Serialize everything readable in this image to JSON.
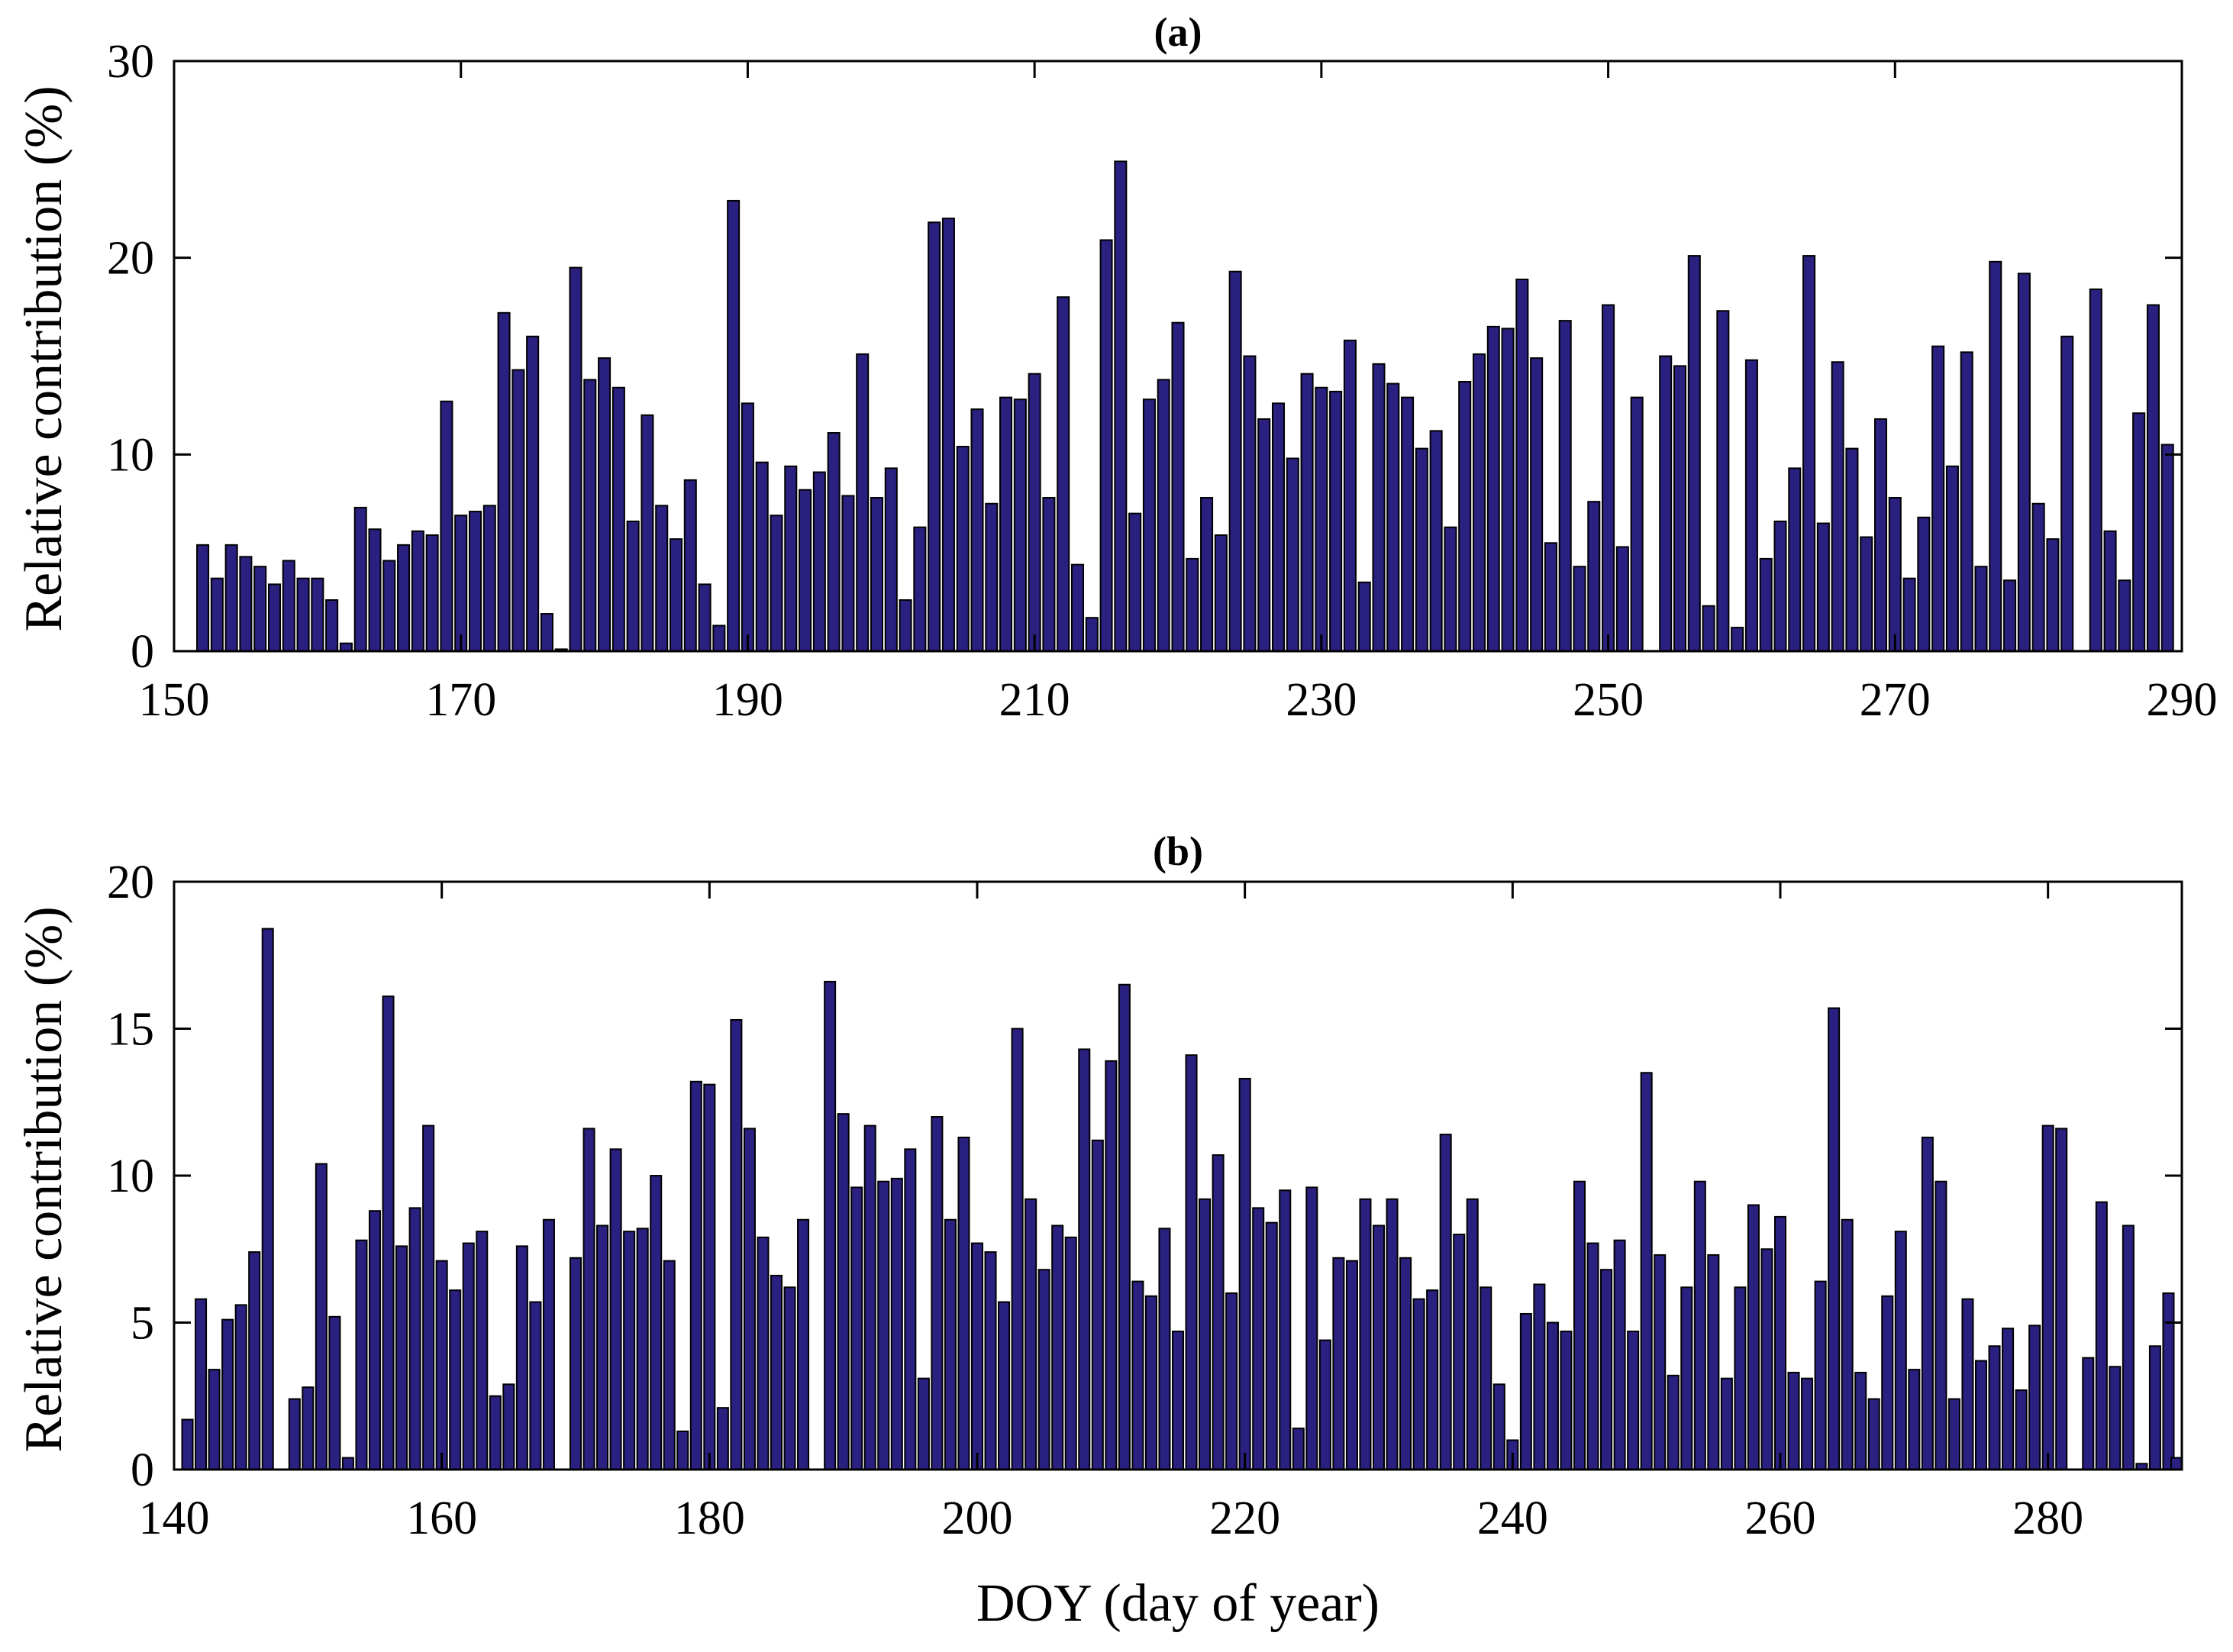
{
  "chart_data": [
    {
      "type": "bar",
      "panel": "a",
      "title": "(a)",
      "xlabel": "",
      "ylabel": "Relative contribution (%)",
      "xlim": [
        150,
        290
      ],
      "ylim": [
        0,
        30
      ],
      "xticks": [
        150,
        170,
        190,
        210,
        230,
        250,
        270,
        290
      ],
      "yticks": [
        0,
        10,
        20,
        30
      ],
      "bar_color": "#2a2080",
      "x_start": 152,
      "values": [
        5.4,
        3.7,
        5.4,
        4.8,
        4.3,
        3.4,
        4.6,
        3.7,
        3.7,
        2.6,
        0.4,
        7.3,
        6.2,
        4.6,
        5.4,
        6.1,
        5.9,
        12.7,
        6.9,
        7.1,
        7.4,
        17.2,
        14.3,
        16.0,
        1.9,
        0.1,
        19.5,
        13.8,
        14.9,
        13.4,
        6.6,
        12.0,
        7.4,
        5.7,
        8.7,
        3.4,
        1.3,
        22.9,
        12.6,
        9.6,
        6.9,
        9.4,
        8.2,
        9.1,
        11.1,
        7.9,
        15.1,
        7.8,
        9.3,
        2.6,
        6.3,
        21.8,
        22.0,
        10.4,
        12.3,
        7.5,
        12.9,
        12.8,
        14.1,
        7.8,
        18.0,
        4.4,
        1.7,
        20.9,
        24.9,
        7.0,
        12.8,
        13.8,
        16.7,
        4.7,
        7.8,
        5.9,
        19.3,
        15.0,
        11.8,
        12.6,
        9.8,
        14.1,
        13.4,
        13.2,
        15.8,
        3.5,
        14.6,
        13.6,
        12.9,
        10.3,
        11.2,
        6.3,
        13.7,
        15.1,
        16.5,
        16.4,
        18.9,
        14.9,
        5.5,
        16.8,
        4.3,
        7.6,
        17.6,
        5.3,
        12.9,
        0.0,
        15.0,
        14.5,
        20.1,
        2.3,
        17.3,
        1.2,
        14.8,
        4.7,
        6.6,
        9.3,
        20.1,
        6.5,
        14.7,
        10.3,
        5.8,
        11.8,
        7.8,
        3.7,
        6.8,
        15.5,
        9.4,
        15.2,
        4.3,
        19.8,
        3.6,
        19.2,
        7.5,
        5.7,
        16.0,
        0.0,
        18.4,
        6.1,
        3.6,
        12.1,
        17.6,
        10.5
      ]
    },
    {
      "type": "bar",
      "panel": "b",
      "title": "(b)",
      "xlabel": "DOY (day of year)",
      "ylabel": "Relative contribution (%)",
      "xlim": [
        140,
        290
      ],
      "ylim": [
        0,
        20
      ],
      "xticks": [
        140,
        160,
        180,
        200,
        220,
        240,
        260,
        280
      ],
      "yticks": [
        0,
        5,
        10,
        15,
        20
      ],
      "bar_color": "#2a2080",
      "x_start": 141,
      "values": [
        1.7,
        5.8,
        3.4,
        5.1,
        5.6,
        7.4,
        18.4,
        0.0,
        2.4,
        2.8,
        10.4,
        5.2,
        0.4,
        7.8,
        8.8,
        16.1,
        7.6,
        8.9,
        11.7,
        7.1,
        6.1,
        7.7,
        8.1,
        2.5,
        2.9,
        7.6,
        5.7,
        8.5,
        0.0,
        7.2,
        11.6,
        8.3,
        10.9,
        8.1,
        8.2,
        10.0,
        7.1,
        1.3,
        13.2,
        13.1,
        2.1,
        15.3,
        11.6,
        7.9,
        6.6,
        6.2,
        8.5,
        0.0,
        16.6,
        12.1,
        9.6,
        11.7,
        9.8,
        9.9,
        10.9,
        3.1,
        12.0,
        8.5,
        11.3,
        7.7,
        7.4,
        5.7,
        15.0,
        9.2,
        6.8,
        8.3,
        7.9,
        14.3,
        11.2,
        13.9,
        16.5,
        6.4,
        5.9,
        8.2,
        4.7,
        14.1,
        9.2,
        10.7,
        6.0,
        13.3,
        8.9,
        8.4,
        9.5,
        1.4,
        9.6,
        4.4,
        7.2,
        7.1,
        9.2,
        8.3,
        9.2,
        7.2,
        5.8,
        6.1,
        11.4,
        8.0,
        9.2,
        6.2,
        2.9,
        1.0,
        5.3,
        6.3,
        5.0,
        4.7,
        9.8,
        7.7,
        6.8,
        7.8,
        4.7,
        13.5,
        7.3,
        3.2,
        6.2,
        9.8,
        7.3,
        3.1,
        6.2,
        9.0,
        7.5,
        8.6,
        3.3,
        3.1,
        6.4,
        15.7,
        8.5,
        3.3,
        2.4,
        5.9,
        8.1,
        3.4,
        11.3,
        9.8,
        2.4,
        5.8,
        3.7,
        4.2,
        4.8,
        2.7,
        4.9,
        11.7,
        11.6,
        0.0,
        3.8,
        9.1,
        3.5,
        8.3,
        0.2,
        4.2,
        6.0,
        0.4
      ]
    }
  ]
}
